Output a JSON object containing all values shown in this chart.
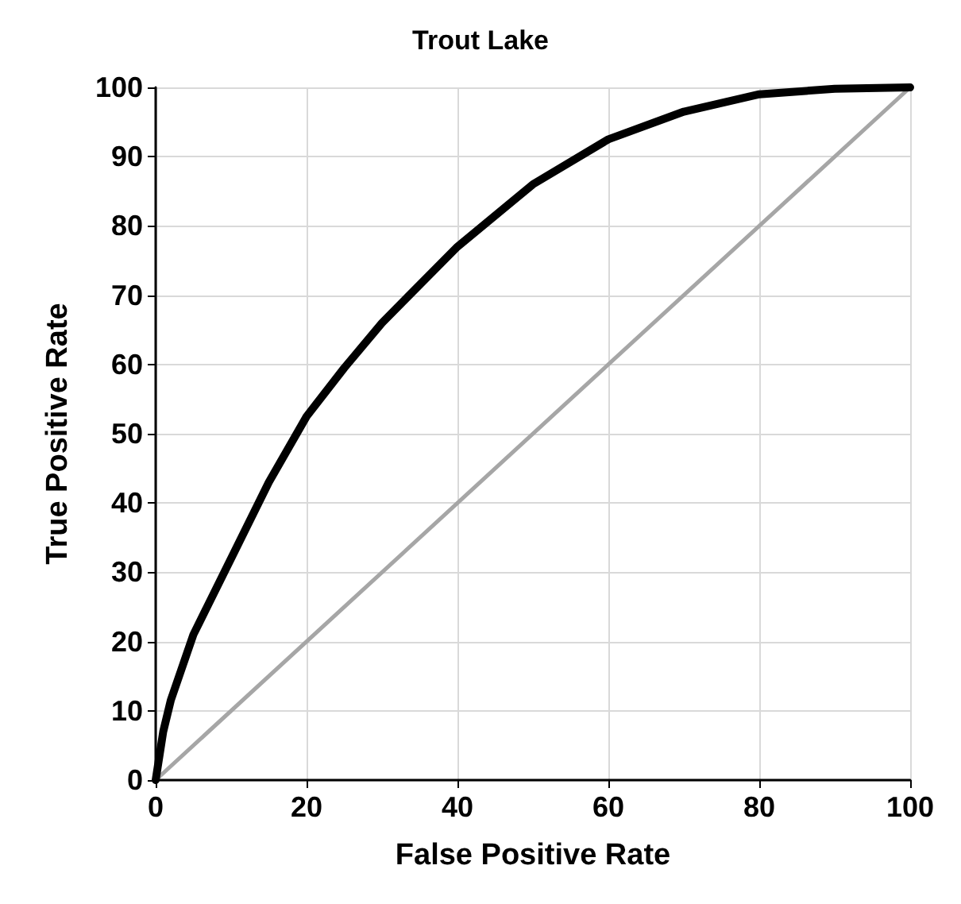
{
  "chart_data": {
    "type": "line",
    "title": "Trout Lake",
    "xlabel": "False Positive Rate",
    "ylabel": "True Positive Rate",
    "xlim": [
      0,
      100
    ],
    "xticks": [
      0,
      20,
      40,
      60,
      80,
      100
    ],
    "ylim": [
      0,
      100
    ],
    "yticks": [
      0,
      10,
      20,
      30,
      40,
      50,
      60,
      70,
      80,
      90,
      100
    ],
    "grid": true,
    "marker": "none",
    "line_style": "solid",
    "series": [
      {
        "color": "#000000",
        "x": [
          0,
          1,
          2,
          5,
          10,
          15,
          20,
          25,
          30,
          40,
          50,
          60,
          70,
          80,
          90,
          100
        ],
        "values": [
          0,
          7,
          11.5,
          21,
          32,
          43,
          52.5,
          59.5,
          66,
          77,
          86,
          92.5,
          96.5,
          99,
          99.8,
          100
        ]
      },
      {
        "color": "#a6a6a6",
        "x": [
          0,
          100
        ],
        "values": [
          0,
          100
        ]
      }
    ]
  }
}
